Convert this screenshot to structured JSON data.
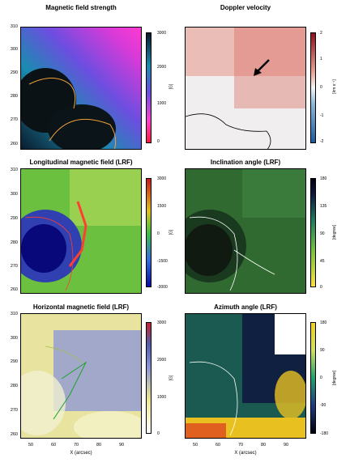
{
  "panels": [
    {
      "title": "Magnetic field strength",
      "cbar_ticks": [
        "3000",
        "2000",
        "1000",
        "0"
      ],
      "unit": "[G]"
    },
    {
      "title": "Doppler velocity",
      "cbar_ticks": [
        "2",
        "1",
        "0",
        "-1",
        "-2"
      ],
      "unit": "[km s⁻¹]"
    },
    {
      "title": "Longitudinal magnetic field (LRF)",
      "cbar_ticks": [
        "3000",
        "1500",
        "0",
        "-1500",
        "-3000"
      ],
      "unit": "[G]"
    },
    {
      "title": "Inclination angle (LRF)",
      "cbar_ticks": [
        "180",
        "135",
        "90",
        "45",
        "0"
      ],
      "unit": "[degree]"
    },
    {
      "title": "Horizontal magnetic field (LRF)",
      "cbar_ticks": [
        "3000",
        "2000",
        "1000",
        "0"
      ],
      "unit": "[G]"
    },
    {
      "title": "Azimuth angle (LRF)",
      "cbar_ticks": [
        "180",
        "90",
        "0",
        "-90",
        "-180"
      ],
      "unit": "[degree]"
    }
  ],
  "y_ticks": [
    "310",
    "300",
    "290",
    "280",
    "270",
    "260"
  ],
  "x_ticks": [
    "50",
    "60",
    "70",
    "80",
    "90"
  ],
  "xlabel": "X (arcsec)",
  "colors": {
    "yellow": "#f4a13a",
    "red": "#e23a3a",
    "green": "#35c23a",
    "white": "#ffffff"
  }
}
